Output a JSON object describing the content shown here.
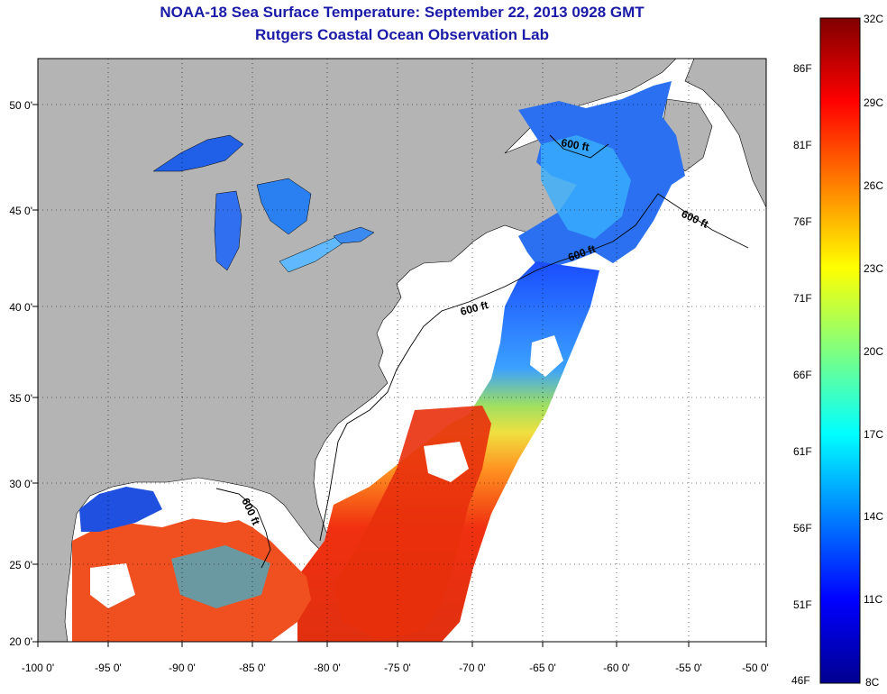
{
  "title": {
    "line1": "NOAA-18 Sea Surface Temperature:  September 22, 2013 0928 GMT",
    "line2": "Rutgers Coastal Ocean Observation Lab"
  },
  "axes": {
    "lon_labels": [
      "-100 0'",
      "-95 0'",
      "-90 0'",
      "-85 0'",
      "-80 0'",
      "-75 0'",
      "-70 0'",
      "-65 0'",
      "-60 0'",
      "-55 0'",
      "-50 0'"
    ],
    "lat_labels": [
      "50 0'",
      "45 0'",
      "40 0'",
      "35 0'",
      "30 0'",
      "25 0'",
      "20 0'"
    ]
  },
  "contour_labels": [
    "600 ft",
    "600 ft",
    "600 ft",
    "600 ft",
    "600 ft"
  ],
  "colorbar": {
    "celsius": [
      "32C",
      "29C",
      "26C",
      "23C",
      "20C",
      "17C",
      "14C",
      "11C",
      "8C"
    ],
    "fahrenheit": [
      "86F",
      "81F",
      "76F",
      "71F",
      "66F",
      "61F",
      "56F",
      "51F",
      "46F"
    ]
  },
  "colors": {
    "land": "#b4b4b4",
    "no_data": "#ffffff",
    "title": "#1a1aa8"
  }
}
